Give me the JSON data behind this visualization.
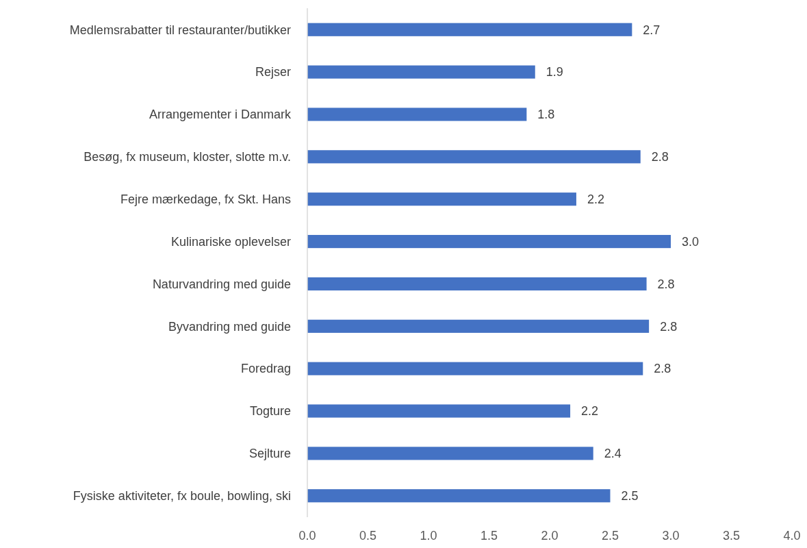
{
  "chart_data": {
    "type": "bar",
    "orientation": "horizontal",
    "categories": [
      "Medlemsrabatter til restauranter/butikker",
      "Rejser",
      "Arrangementer i Danmark",
      "Besøg, fx museum, kloster, slotte m.v.",
      "Fejre mærkedage, fx Skt. Hans",
      "Kulinariske oplevelser",
      "Naturvandring med guide",
      "Byvandring med guide",
      "Foredrag",
      "Togture",
      "Sejlture",
      "Fysiske aktiviteter,  fx boule, bowling, ski"
    ],
    "values": [
      2.68,
      1.88,
      1.81,
      2.75,
      2.22,
      3.0,
      2.8,
      2.82,
      2.77,
      2.17,
      2.36,
      2.5
    ],
    "value_labels": [
      "2.7",
      "1.9",
      "1.8",
      "2.8",
      "2.2",
      "3.0",
      "2.8",
      "2.8",
      "2.8",
      "2.2",
      "2.4",
      "2.5"
    ],
    "color": "#4472c4",
    "xlim": [
      0,
      4
    ],
    "xticks": [
      {
        "value": 0,
        "label": "0.0"
      },
      {
        "value": 0.5,
        "label": "0.5"
      },
      {
        "value": 1,
        "label": "1.0"
      },
      {
        "value": 1.5,
        "label": "1.5"
      },
      {
        "value": 2,
        "label": "2.0"
      },
      {
        "value": 2.5,
        "label": "2.5"
      },
      {
        "value": 3,
        "label": "3.0"
      },
      {
        "value": 3.5,
        "label": "3.5"
      },
      {
        "value": 4,
        "label": "4.0"
      }
    ],
    "grid": false
  }
}
